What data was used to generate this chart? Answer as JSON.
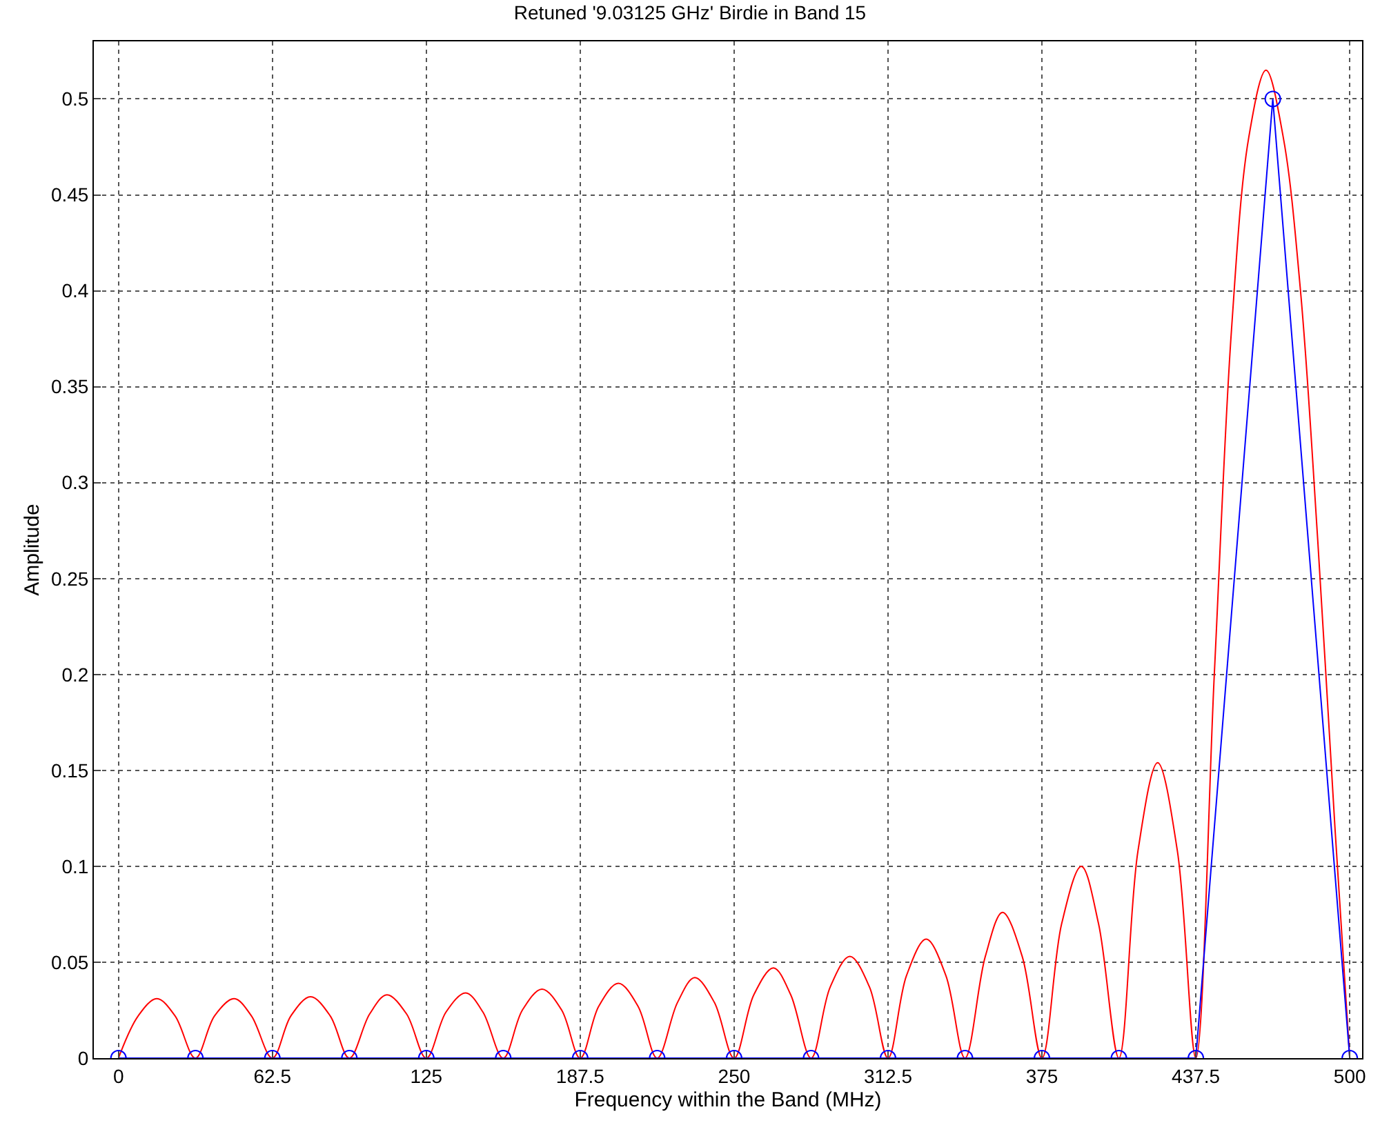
{
  "chart_data": {
    "type": "line",
    "title": "Retuned '9.03125 GHz' Birdie in Band 15",
    "xlabel": "Frequency within the Band (MHz)",
    "ylabel": "Amplitude",
    "series": [
      {
        "color": "#ff0000",
        "marker": "none",
        "x": [
          0,
          8,
          15.6,
          23,
          31.25,
          39,
          47,
          54,
          62.5,
          70,
          78,
          86,
          93.75,
          102,
          109,
          117,
          125,
          133,
          141,
          148,
          156.25,
          164,
          172,
          180,
          187.5,
          195,
          203,
          211,
          218.75,
          227,
          234,
          242,
          250,
          258,
          266,
          273,
          281.25,
          289,
          297,
          305,
          312.5,
          320,
          328,
          336,
          343.75,
          352,
          359,
          367,
          375,
          383,
          391,
          398,
          406.25,
          414,
          422,
          430,
          437.5,
          445,
          452,
          459,
          466,
          473,
          480,
          487,
          494,
          500
        ],
        "values": [
          0,
          0.022,
          0.031,
          0.022,
          0,
          0.022,
          0.031,
          0.022,
          0,
          0.022,
          0.032,
          0.022,
          0,
          0.023,
          0.033,
          0.023,
          0,
          0.024,
          0.034,
          0.024,
          0,
          0.025,
          0.036,
          0.025,
          0,
          0.027,
          0.039,
          0.027,
          0,
          0.029,
          0.042,
          0.029,
          0,
          0.033,
          0.047,
          0.033,
          0,
          0.037,
          0.053,
          0.037,
          0,
          0.043,
          0.062,
          0.043,
          0,
          0.053,
          0.076,
          0.053,
          0,
          0.07,
          0.1,
          0.07,
          0,
          0.108,
          0.154,
          0.108,
          0,
          0.2,
          0.38,
          0.48,
          0.515,
          0.48,
          0.4,
          0.27,
          0.12,
          0
        ]
      },
      {
        "color": "#0000ff",
        "marker": "circle",
        "x": [
          0,
          31.25,
          62.5,
          93.75,
          125,
          156.25,
          187.5,
          218.75,
          250,
          281.25,
          312.5,
          343.75,
          375,
          406.25,
          437.5,
          468.75,
          500
        ],
        "values": [
          0,
          0,
          0,
          0,
          0,
          0,
          0,
          0,
          0,
          0,
          0,
          0,
          0,
          0,
          0,
          0.5,
          0
        ]
      }
    ],
    "xlim": [
      -10,
      505
    ],
    "xticks": [
      0,
      62.5,
      125,
      187.5,
      250,
      312.5,
      375,
      437.5,
      500
    ],
    "ylim": [
      0,
      0.53
    ],
    "yticks": [
      0,
      0.05,
      0.1,
      0.15,
      0.2,
      0.25,
      0.3,
      0.35,
      0.4,
      0.45,
      0.5
    ],
    "grid": true
  }
}
